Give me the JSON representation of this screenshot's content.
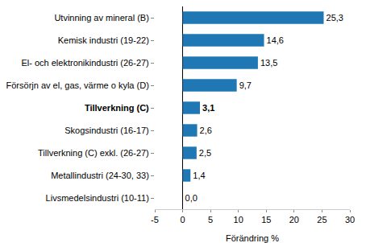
{
  "chart_data": {
    "type": "bar",
    "orientation": "horizontal",
    "categories": [
      "Utvinning av mineral (B)",
      "Kemisk industri (19-22)",
      "El- och elektronikindustri (26-27)",
      "Försörjn av el, gas, värme o kyla (D)",
      "Tillverkning (C)",
      "Skogsindustri (16-17)",
      "Tillverkning (C) exkl. (26-27)",
      "Metallindustri (24-30, 33)",
      "Livsmedelsindustri (10-11)"
    ],
    "values": [
      25.3,
      14.6,
      13.5,
      9.7,
      3.1,
      2.6,
      2.5,
      1.4,
      0.0
    ],
    "value_labels": [
      "25,3",
      "14,6",
      "13,5",
      "9,7",
      "3,1",
      "2,6",
      "2,5",
      "1,4",
      "0,0"
    ],
    "data_labels": true,
    "color": "#1f77b4",
    "x_label": "Förändring %",
    "xlim": [
      -5,
      30
    ],
    "xticks": [
      -5,
      0,
      5,
      10,
      15,
      20,
      25,
      30
    ],
    "grid": false
  }
}
